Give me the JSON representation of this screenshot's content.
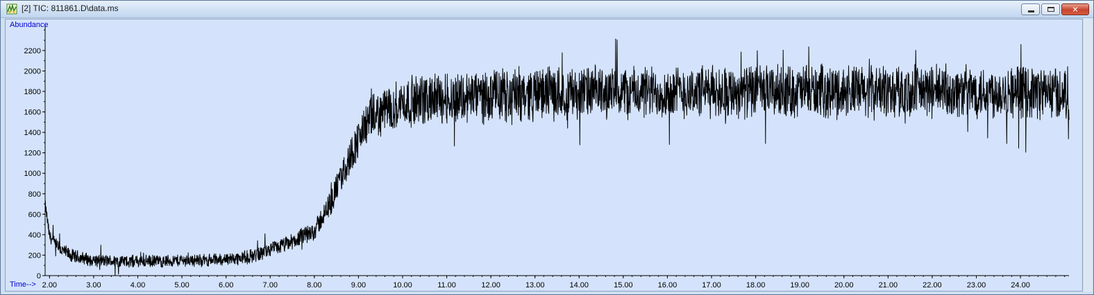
{
  "window": {
    "title": "[2] TIC: 811861.D\\data.ms",
    "minimize_glyph": "minimize-icon",
    "maximize_glyph": "maximize-icon",
    "close_glyph": "close-icon",
    "close_label": "✕"
  },
  "colors": {
    "plot_background": "#d4e3fb",
    "trace": "#000000",
    "axis_label": "#0000cc"
  },
  "chart_data": {
    "type": "line",
    "ylabel": "Abundance",
    "xlabel": "Time-->",
    "xlim": [
      1.9,
      25.1
    ],
    "ylim": [
      0,
      2450
    ],
    "x_ticks": [
      "2.00",
      "3.00",
      "4.00",
      "5.00",
      "6.00",
      "7.00",
      "8.00",
      "9.00",
      "10.00",
      "11.00",
      "12.00",
      "13.00",
      "14.00",
      "15.00",
      "16.00",
      "17.00",
      "18.00",
      "19.00",
      "20.00",
      "21.00",
      "22.00",
      "23.00",
      "24.00"
    ],
    "y_ticks": [
      "0",
      "200",
      "400",
      "600",
      "800",
      "1000",
      "1200",
      "1400",
      "1600",
      "1800",
      "2000",
      "2200"
    ],
    "series": [
      {
        "x": [
          1.9,
          2.0,
          2.2,
          2.5,
          3.0,
          3.5,
          4.0,
          4.5,
          5.0,
          5.5,
          6.0,
          6.5,
          7.0,
          7.5,
          8.0,
          8.3,
          8.6,
          8.9,
          9.2,
          9.6,
          10.0,
          10.5,
          11.0,
          12.0,
          13.0,
          14.0,
          15.0,
          16.0,
          17.0,
          18.0,
          19.0,
          20.0,
          21.0,
          22.0,
          23.0,
          24.0,
          25.0
        ],
        "y": [
          700,
          380,
          270,
          190,
          150,
          140,
          140,
          140,
          150,
          150,
          160,
          180,
          250,
          330,
          440,
          650,
          950,
          1250,
          1500,
          1620,
          1690,
          1720,
          1740,
          1760,
          1780,
          1790,
          1790,
          1790,
          1800,
          1800,
          1800,
          1800,
          1800,
          1800,
          1800,
          1800,
          1780
        ],
        "noise_amplitude": [
          60,
          80,
          80,
          80,
          70,
          70,
          70,
          70,
          70,
          70,
          70,
          80,
          80,
          90,
          110,
          140,
          170,
          210,
          240,
          260,
          270,
          280,
          290,
          290,
          290,
          290,
          290,
          290,
          290,
          290,
          290,
          290,
          290,
          290,
          290,
          290,
          290
        ]
      }
    ]
  }
}
